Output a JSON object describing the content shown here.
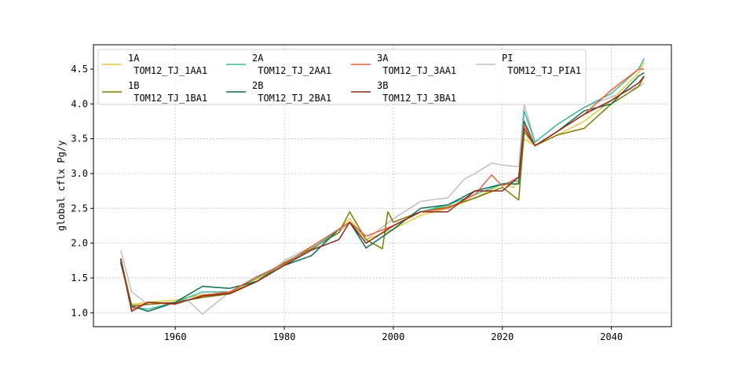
{
  "chart_data": {
    "type": "line",
    "title": "",
    "xlabel": "",
    "ylabel": "global cflx Pg/y",
    "xlim": [
      1945,
      2051
    ],
    "ylim": [
      0.8,
      4.85
    ],
    "xticks": [
      1960,
      1980,
      2000,
      2020,
      2040
    ],
    "xtick_labels": [
      "1960",
      "1980",
      "2000",
      "2020",
      "2040"
    ],
    "yticks": [
      1.0,
      1.5,
      2.0,
      2.5,
      3.0,
      3.5,
      4.0,
      4.5
    ],
    "ytick_labels": [
      "1.0",
      "1.5",
      "2.0",
      "2.5",
      "3.0",
      "3.5",
      "4.0",
      "4.5"
    ],
    "grid": true,
    "legend_placement": "top-left",
    "legend_columns": 4,
    "series": [
      {
        "name": "1A\n TOM12_TJ_1AA1",
        "color": "#e8c93a",
        "x": [
          1950,
          1952,
          1955,
          1960,
          1965,
          1970,
          1975,
          1980,
          1985,
          1990,
          1992,
          1995,
          2000,
          2005,
          2010,
          2015,
          2020,
          2022,
          2023,
          2024,
          2026,
          2030,
          2035,
          2040,
          2045,
          2046
        ],
        "y": [
          1.75,
          1.12,
          1.15,
          1.18,
          1.26,
          1.28,
          1.48,
          1.7,
          1.95,
          2.2,
          2.35,
          2.05,
          2.2,
          2.4,
          2.5,
          2.65,
          2.85,
          2.8,
          2.9,
          3.5,
          3.4,
          3.55,
          3.75,
          4.05,
          4.45,
          4.6
        ]
      },
      {
        "name": "1B\n TOM12_TJ_1BA1",
        "color": "#7c7a00",
        "x": [
          1950,
          1952,
          1955,
          1960,
          1965,
          1970,
          1975,
          1980,
          1985,
          1990,
          1992,
          1995,
          1998,
          1999,
          2000,
          2005,
          2010,
          2015,
          2020,
          2023,
          2024,
          2026,
          2030,
          2035,
          2040,
          2045,
          2046
        ],
        "y": [
          1.78,
          1.1,
          1.12,
          1.15,
          1.22,
          1.27,
          1.45,
          1.72,
          1.92,
          2.15,
          2.45,
          2.05,
          1.92,
          2.45,
          2.3,
          2.45,
          2.52,
          2.65,
          2.8,
          2.62,
          3.6,
          3.4,
          3.55,
          3.65,
          4.0,
          4.25,
          4.4
        ]
      },
      {
        "name": "2A\n TOM12_TJ_2AA1",
        "color": "#3fb89a",
        "x": [
          1950,
          1952,
          1955,
          1960,
          1965,
          1970,
          1975,
          1980,
          1985,
          1990,
          1992,
          1995,
          2000,
          2005,
          2010,
          2015,
          2020,
          2023,
          2024,
          2026,
          2030,
          2035,
          2040,
          2045,
          2046
        ],
        "y": [
          1.73,
          1.08,
          1.05,
          1.15,
          1.3,
          1.3,
          1.5,
          1.7,
          1.9,
          2.2,
          2.3,
          2.0,
          2.25,
          2.45,
          2.55,
          2.7,
          2.85,
          2.9,
          3.9,
          3.45,
          3.7,
          3.95,
          4.15,
          4.5,
          4.65
        ]
      },
      {
        "name": "2B\n TOM12_TJ_2BA1",
        "color": "#0e6e52",
        "x": [
          1950,
          1952,
          1955,
          1960,
          1965,
          1970,
          1975,
          1980,
          1985,
          1990,
          1992,
          1995,
          2000,
          2005,
          2010,
          2015,
          2020,
          2023,
          2024,
          2026,
          2030,
          2035,
          2040,
          2045,
          2046
        ],
        "y": [
          1.72,
          1.1,
          1.02,
          1.15,
          1.38,
          1.35,
          1.45,
          1.68,
          1.82,
          2.2,
          2.3,
          1.93,
          2.2,
          2.5,
          2.55,
          2.75,
          2.85,
          2.85,
          3.75,
          3.4,
          3.6,
          3.9,
          4.0,
          4.4,
          4.45
        ]
      },
      {
        "name": "3A\n TOM12_TJ_3AA1",
        "color": "#e8623e",
        "x": [
          1950,
          1952,
          1955,
          1960,
          1965,
          1970,
          1975,
          1980,
          1985,
          1990,
          1992,
          1995,
          2000,
          2005,
          2010,
          2015,
          2018,
          2020,
          2023,
          2024,
          2026,
          2030,
          2035,
          2040,
          2045,
          2046
        ],
        "y": [
          1.77,
          1.05,
          1.15,
          1.12,
          1.25,
          1.3,
          1.52,
          1.7,
          1.95,
          2.2,
          2.3,
          2.1,
          2.25,
          2.45,
          2.5,
          2.7,
          2.98,
          2.82,
          2.95,
          3.7,
          3.4,
          3.6,
          3.85,
          4.2,
          4.5,
          4.5
        ]
      },
      {
        "name": "3B\n TOM12_TJ_3BA1",
        "color": "#8e2a1c",
        "x": [
          1950,
          1952,
          1955,
          1960,
          1965,
          1970,
          1975,
          1980,
          1985,
          1990,
          1992,
          1995,
          2000,
          2005,
          2010,
          2015,
          2020,
          2023,
          2024,
          2026,
          2030,
          2035,
          2040,
          2045,
          2046
        ],
        "y": [
          1.78,
          1.02,
          1.15,
          1.13,
          1.24,
          1.28,
          1.45,
          1.68,
          1.9,
          2.05,
          2.3,
          2.0,
          2.25,
          2.45,
          2.45,
          2.75,
          2.75,
          2.95,
          3.65,
          3.4,
          3.6,
          3.85,
          4.05,
          4.3,
          4.4
        ]
      },
      {
        "name": "PI\n TOM12_TJ_PIA1",
        "color": "#c0c0c0",
        "x": [
          1950,
          1952,
          1955,
          1960,
          1962,
          1965,
          1970,
          1975,
          1980,
          1985,
          1990,
          1992,
          1995,
          2000,
          2005,
          2010,
          2013,
          2015,
          2018,
          2020,
          2023,
          2024,
          2026,
          2030,
          2035,
          2040,
          2045,
          2046
        ],
        "y": [
          1.9,
          1.3,
          1.12,
          1.15,
          1.2,
          0.98,
          1.3,
          1.45,
          1.75,
          1.95,
          2.15,
          2.3,
          2.05,
          2.35,
          2.6,
          2.65,
          2.92,
          3.0,
          3.15,
          3.12,
          3.1,
          4.0,
          3.45,
          3.7,
          3.95,
          4.1,
          4.25,
          4.3
        ]
      }
    ]
  }
}
